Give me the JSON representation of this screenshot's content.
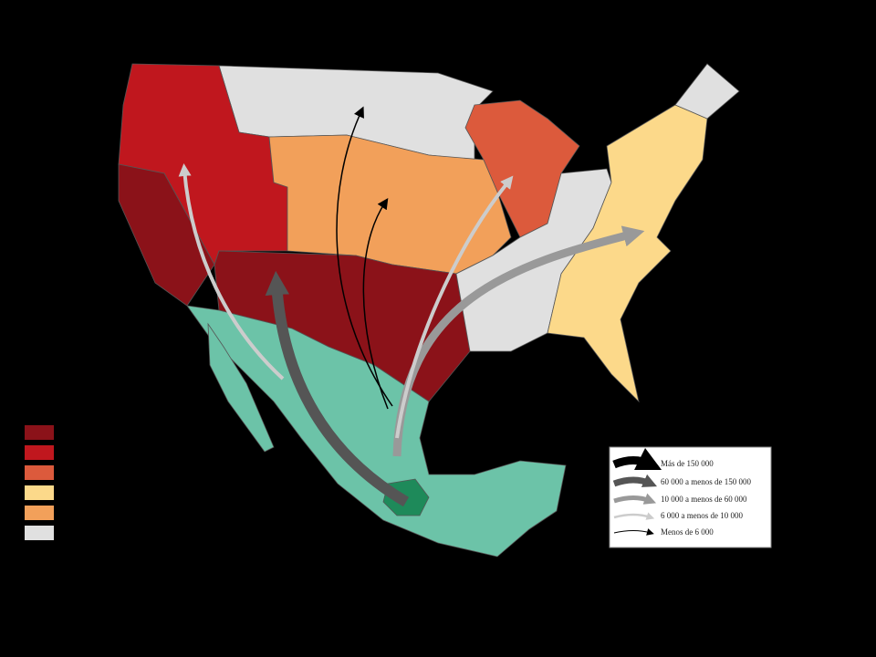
{
  "legend": {
    "items": [
      "Más de 150 000",
      "60 000 a menos de 150 000",
      "10 000 a menos de 60 000",
      "6 000 a menos de 10 000",
      "Menos de 6 000"
    ]
  }
}
